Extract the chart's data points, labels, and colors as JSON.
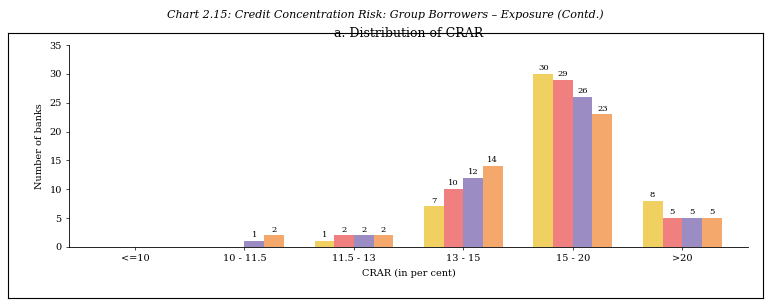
{
  "title": "Chart 2.15: Credit Concentration Risk: Group Borrowers – Exposure (Contd.)",
  "subtitle": "a. Distribution of CRAR",
  "categories": [
    "<=10",
    "10 - 11.5",
    "11.5 - 13",
    "13 - 15",
    "15 - 20",
    ">20"
  ],
  "series": {
    "Baseline": [
      0,
      0,
      1,
      7,
      30,
      8
    ],
    "Shock 1": [
      0,
      0,
      2,
      10,
      29,
      5
    ],
    "Shock 2": [
      0,
      1,
      2,
      12,
      26,
      5
    ],
    "Shock 3": [
      0,
      2,
      2,
      14,
      23,
      5
    ]
  },
  "colors": {
    "Baseline": "#f0d060",
    "Shock 1": "#f08080",
    "Shock 2": "#9b8cc4",
    "Shock 3": "#f4a86c"
  },
  "xlabel": "CRAR (in per cent)",
  "ylabel": "Number of banks",
  "ylim": [
    0,
    35
  ],
  "yticks": [
    0,
    5,
    10,
    15,
    20,
    25,
    30,
    35
  ],
  "bar_width": 0.18,
  "title_fontsize": 8,
  "subtitle_fontsize": 9,
  "axis_fontsize": 7,
  "tick_fontsize": 7,
  "label_fontsize": 6,
  "legend_fontsize": 7,
  "figure_facecolor": "#ffffff",
  "plot_facecolor": "#ffffff"
}
